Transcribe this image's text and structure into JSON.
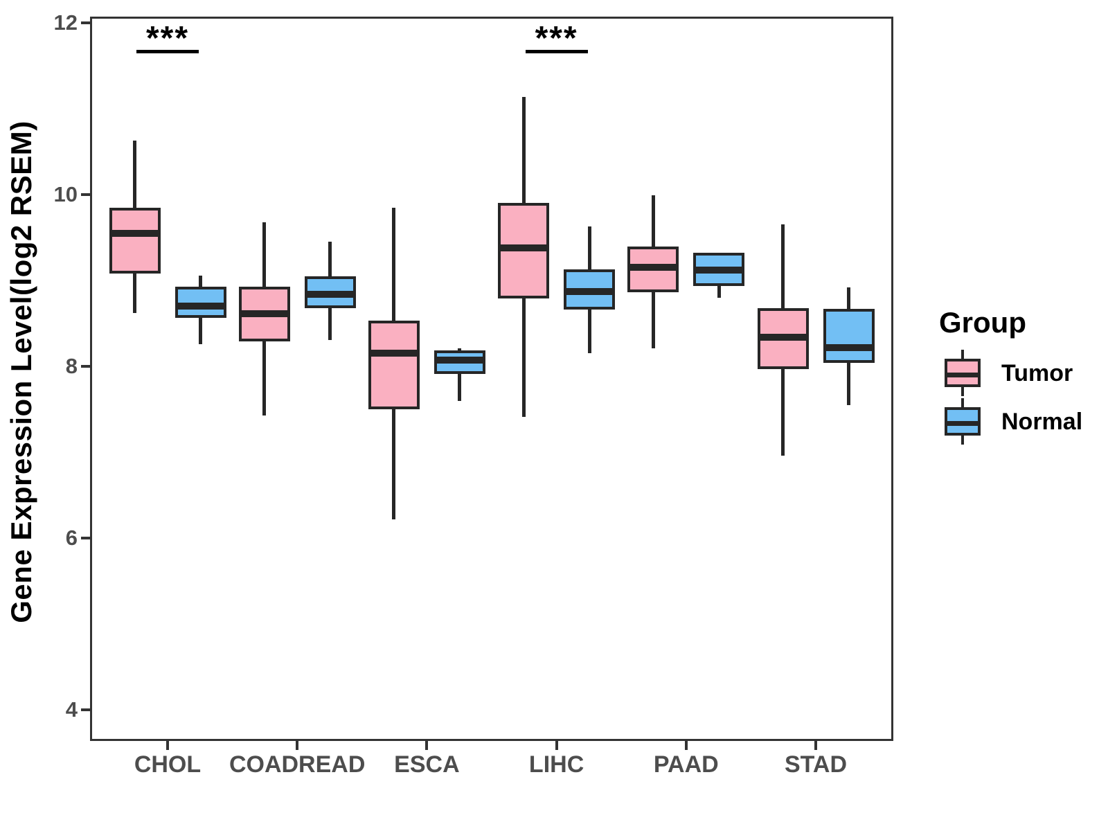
{
  "chart_data": {
    "type": "boxplot",
    "ylabel": "Gene Expression Level(log2 RSEM)",
    "xlabel": "",
    "yticks": [
      4,
      6,
      8,
      10,
      12
    ],
    "ylim": [
      3.6,
      12.1
    ],
    "grid": "off",
    "categories": [
      "CHOL",
      "COADREAD",
      "ESCA",
      "LIHC",
      "PAAD",
      "STAD"
    ],
    "series": [
      {
        "name": "Tumor",
        "color": "#FAB0C1",
        "boxes": [
          {
            "min": 8.62,
            "q1": 9.1,
            "median": 9.55,
            "q3": 9.83,
            "max": 10.63
          },
          {
            "min": 7.43,
            "q1": 8.31,
            "median": 8.61,
            "q3": 8.91,
            "max": 9.68
          },
          {
            "min": 6.22,
            "q1": 7.52,
            "median": 8.15,
            "q3": 8.52,
            "max": 9.85
          },
          {
            "min": 7.41,
            "q1": 8.81,
            "median": 9.38,
            "q3": 9.89,
            "max": 11.14
          },
          {
            "min": 8.21,
            "q1": 8.88,
            "median": 9.15,
            "q3": 9.38,
            "max": 9.99
          },
          {
            "min": 6.96,
            "q1": 7.98,
            "median": 8.34,
            "q3": 8.66,
            "max": 9.65
          }
        ]
      },
      {
        "name": "Normal",
        "color": "#72BFF4",
        "boxes": [
          {
            "min": 8.26,
            "q1": 8.58,
            "median": 8.7,
            "q3": 8.91,
            "max": 9.06
          },
          {
            "min": 8.31,
            "q1": 8.69,
            "median": 8.84,
            "q3": 9.03,
            "max": 9.45
          },
          {
            "min": 7.6,
            "q1": 7.93,
            "median": 8.07,
            "q3": 8.17,
            "max": 8.21
          },
          {
            "min": 8.15,
            "q1": 8.68,
            "median": 8.87,
            "q3": 9.11,
            "max": 9.63
          },
          {
            "min": 8.8,
            "q1": 8.95,
            "median": 9.12,
            "q3": 9.31,
            "max": 9.31
          },
          {
            "min": 7.55,
            "q1": 8.06,
            "median": 8.22,
            "q3": 8.65,
            "max": 8.92
          }
        ]
      }
    ],
    "significance": [
      {
        "category": "CHOL",
        "label": "***"
      },
      {
        "category": "LIHC",
        "label": "***"
      }
    ],
    "legend": {
      "title": "Group",
      "entries": [
        "Tumor",
        "Normal"
      ],
      "position": "right"
    }
  }
}
